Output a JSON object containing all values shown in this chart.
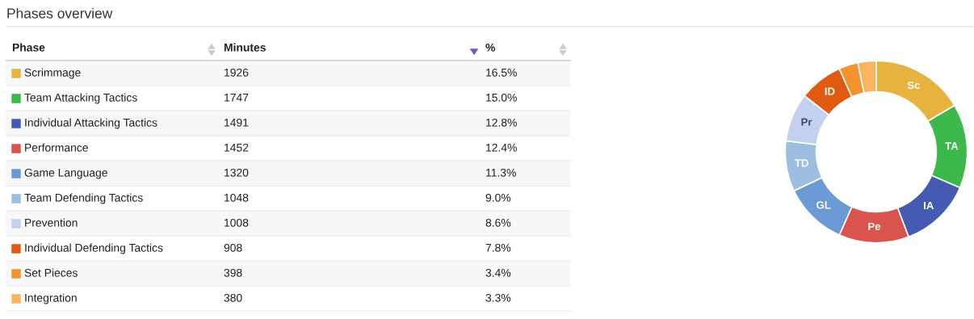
{
  "chart_data": {
    "type": "donut",
    "title": "Phases overview",
    "legend_title": "Phase",
    "categories": [
      "Scrimmage",
      "Team Attacking Tactics",
      "Individual Attacking Tactics",
      "Performance",
      "Game Language",
      "Team Defending Tactics",
      "Prevention",
      "Individual Defending Tactics",
      "Set Pieces",
      "Integration"
    ],
    "values": [
      1926,
      1747,
      1491,
      1452,
      1320,
      1048,
      1008,
      908,
      398,
      380
    ],
    "colors": [
      "#e8b23e",
      "#3db84b",
      "#445ab3",
      "#d9534f",
      "#6c9ad6",
      "#9dbde1",
      "#c3d0ee",
      "#e05a12",
      "#f5922f",
      "#f9b460"
    ],
    "data_labels": true,
    "legend": "left",
    "annotations": [
      "Minutes",
      "%",
      "16.5%",
      "15.0%",
      "12.8%",
      "12.4%",
      "11.3%",
      "9.0%",
      "8.6%",
      "7.8%",
      "3.4%",
      "3.3%",
      "Sc",
      "TA",
      "IA",
      "Pe",
      "GL",
      "TD",
      "Pr",
      "ID"
    ]
  }
}
